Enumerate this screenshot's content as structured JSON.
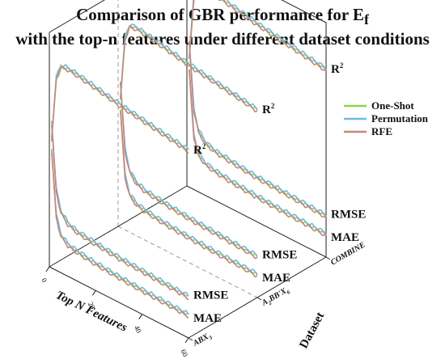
{
  "title": {
    "line1": "Comparison of GBR performance for E",
    "line1_subscript": "f",
    "line2": "with the top-n features under different dataset conditions"
  },
  "chart_data": {
    "type": "line",
    "title": "Comparison of GBR performance for Ef with the top-n features under different dataset conditions",
    "xlabel": "Top N Features",
    "ylabel": "Dataset",
    "x_ticks": [
      "0",
      "20",
      "40",
      "60"
    ],
    "xlim": [
      0,
      60
    ],
    "datasets": [
      {
        "label": "ABX",
        "subscript": "3"
      },
      {
        "label": "A",
        "subscript": "2",
        "label_mid": "BB'X",
        "subscript2": "6"
      },
      {
        "label": "COMBINE"
      }
    ],
    "series": [
      {
        "name": "One-Shot",
        "color": "#8fd14f"
      },
      {
        "name": "Permutation",
        "color": "#6fb8ea"
      },
      {
        "name": "RFE",
        "color": "#c9867a"
      }
    ],
    "metric_labels": [
      "R",
      "RMSE",
      "MAE"
    ],
    "r2_superscript": "2",
    "curves": {
      "R2": {
        "x": [
          1,
          3,
          5,
          8,
          12,
          20,
          30,
          40,
          50,
          60
        ],
        "y": [
          0.55,
          0.82,
          0.88,
          0.885,
          0.88,
          0.865,
          0.845,
          0.83,
          0.815,
          0.8
        ]
      },
      "RMSE": {
        "x": [
          1,
          3,
          5,
          8,
          12,
          20,
          30,
          40,
          50,
          60
        ],
        "y": [
          0.62,
          0.34,
          0.26,
          0.225,
          0.21,
          0.2,
          0.19,
          0.185,
          0.18,
          0.175
        ]
      },
      "MAE": {
        "x": [
          1,
          3,
          5,
          8,
          12,
          20,
          30,
          40,
          50,
          60
        ],
        "y": [
          0.5,
          0.23,
          0.16,
          0.135,
          0.125,
          0.115,
          0.108,
          0.103,
          0.1,
          0.097
        ]
      }
    },
    "grid": false,
    "legend_position": "right"
  }
}
